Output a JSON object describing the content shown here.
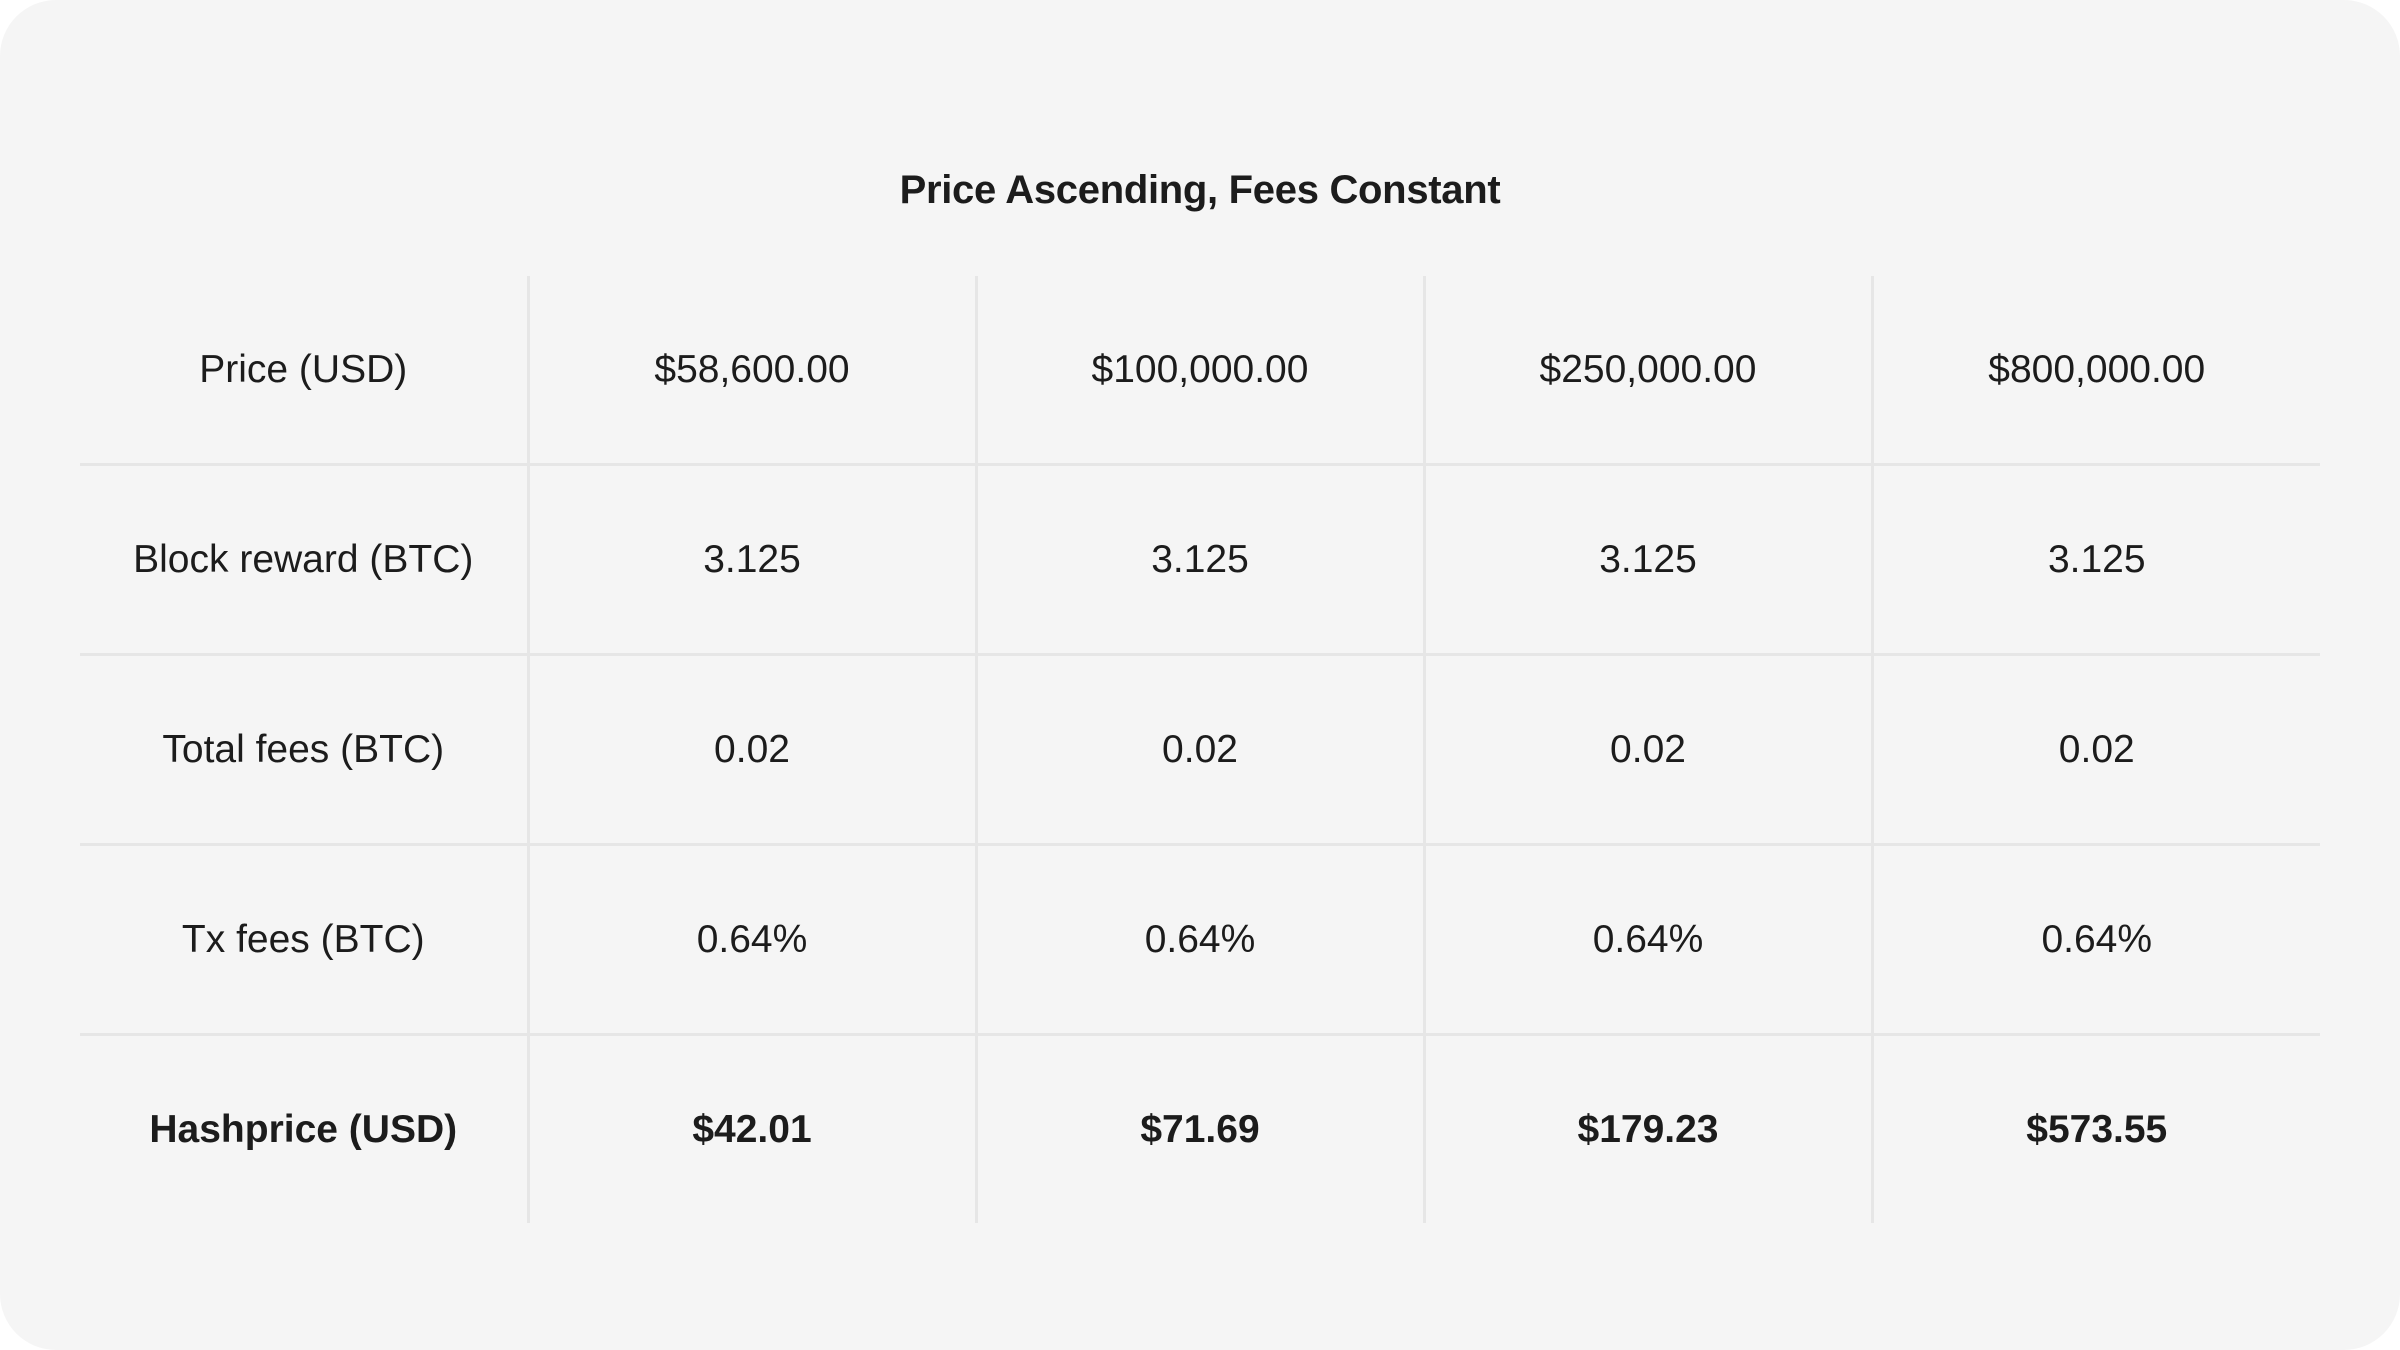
{
  "title": "Price Ascending, Fees Constant",
  "table": {
    "rows": [
      {
        "label": "Price (USD)",
        "values": [
          "$58,600.00",
          "$100,000.00",
          "$250,000.00",
          "$800,000.00"
        ]
      },
      {
        "label": "Block reward (BTC)",
        "values": [
          "3.125",
          "3.125",
          "3.125",
          "3.125"
        ]
      },
      {
        "label": "Total fees (BTC)",
        "values": [
          "0.02",
          "0.02",
          "0.02",
          "0.02"
        ]
      },
      {
        "label": "Tx fees (BTC)",
        "values": [
          "0.64%",
          "0.64%",
          "0.64%",
          "0.64%"
        ]
      },
      {
        "label": "Hashprice (USD)",
        "values": [
          "$42.01",
          "$71.69",
          "$179.23",
          "$573.55"
        ],
        "bold": true
      }
    ]
  },
  "colors": {
    "background": "#f5f5f5",
    "text": "#1c1c1c",
    "grid": "#e6e6e6"
  }
}
